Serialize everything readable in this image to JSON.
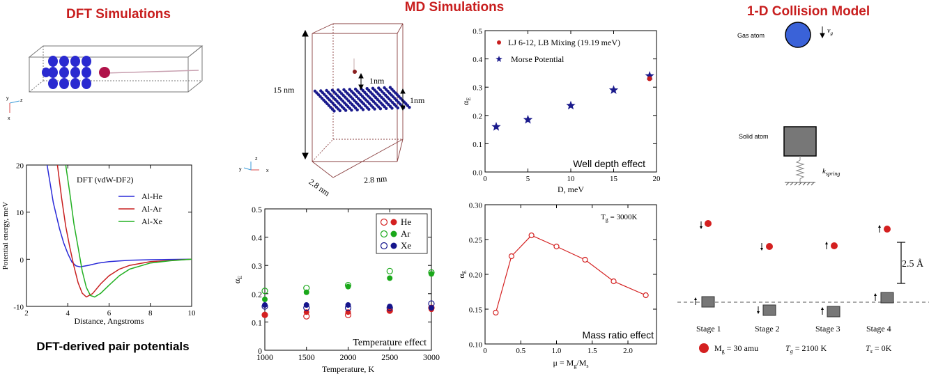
{
  "sections": {
    "dft_title": "DFT Simulations",
    "md_title": "MD Simulations",
    "collision_title": "1-D Collision Model",
    "dft_caption": "DFT-derived pair potentials"
  },
  "md_box": {
    "height_label": "15 nm",
    "gap_label": "1nm",
    "layer_label": "1nm",
    "width_label_1": "2.8 nm",
    "width_label_2": "2.8 nm"
  },
  "collision": {
    "gas_atom_label": "Gas atom",
    "vg_label": "v",
    "vg_sub": "g",
    "solid_atom_label": "Solid atom",
    "spring_label": "k",
    "spring_sub": "spring",
    "distance_label": "2.5 Å",
    "stages": [
      "Stage 1",
      "Stage 2",
      "Stage 3",
      "Stage 4"
    ],
    "mg_label": "M",
    "mg_sub": "g",
    "mg_value": " = 30 amu",
    "tg_label": "T",
    "tg_sub": "g",
    "tg_value": " = 2100 K",
    "ts_label": "T",
    "ts_sub": "s",
    "ts_value": " = 0K",
    "colors": {
      "atom": "#d42020",
      "solid": "#777777",
      "gas": "#3a62d8"
    }
  },
  "chart_data": [
    {
      "id": "dft_potential",
      "type": "line",
      "title": "DFT (vdW-DF2)",
      "xlabel": "Distance, Angstroms",
      "ylabel": "Potential energy, meV",
      "xlim": [
        2,
        10
      ],
      "ylim": [
        -10,
        20
      ],
      "xticks": [
        2,
        4,
        6,
        8,
        10
      ],
      "yticks": [
        -10,
        0,
        10,
        20
      ],
      "legend_position": "top-right",
      "series": [
        {
          "name": "Al-He",
          "color": "#2a2ad8",
          "x": [
            3.0,
            3.3,
            3.6,
            3.8,
            4.0,
            4.2,
            4.4,
            4.6,
            5.0,
            5.5,
            6.0,
            7.0,
            8.0,
            10.0
          ],
          "y": [
            20,
            12,
            6.5,
            3.5,
            1.2,
            -0.6,
            -1.4,
            -1.6,
            -1.3,
            -0.8,
            -0.5,
            -0.2,
            -0.1,
            0
          ]
        },
        {
          "name": "Al-Ar",
          "color": "#c81e1e",
          "x": [
            3.5,
            3.7,
            3.9,
            4.1,
            4.3,
            4.5,
            4.7,
            4.9,
            5.2,
            5.6,
            6.0,
            6.5,
            7.0,
            8.0,
            10.0
          ],
          "y": [
            20,
            13,
            7,
            2.5,
            -1.5,
            -5,
            -7.2,
            -8,
            -7.3,
            -5.2,
            -3.5,
            -2.1,
            -1.3,
            -0.5,
            0
          ]
        },
        {
          "name": "Al-Xe",
          "color": "#22b022",
          "x": [
            3.9,
            4.1,
            4.3,
            4.5,
            4.7,
            4.9,
            5.1,
            5.3,
            5.6,
            6.0,
            6.5,
            7.0,
            8.0,
            9.0,
            10.0
          ],
          "y": [
            20,
            14,
            7.5,
            2.5,
            -2.5,
            -6,
            -7.7,
            -8,
            -7.2,
            -5.5,
            -3.5,
            -2.1,
            -0.8,
            -0.3,
            0
          ]
        }
      ]
    },
    {
      "id": "well_depth",
      "type": "scatter",
      "annotation": "Well depth effect",
      "xlabel": "D, meV",
      "ylabel": "α",
      "ylabel_sub": "E",
      "xlim": [
        0,
        20
      ],
      "ylim": [
        0,
        0.5
      ],
      "xticks": [
        0,
        5,
        10,
        15,
        20
      ],
      "yticks": [
        0,
        0.1,
        0.2,
        0.3,
        0.4,
        0.5
      ],
      "legend_position": "top-right",
      "series": [
        {
          "name": "LJ 6-12, LB Mixing (19.19 meV)",
          "marker": "circle",
          "color": "#c81e1e",
          "x": [
            19.19
          ],
          "y": [
            0.33
          ]
        },
        {
          "name": "Morse Potential",
          "marker": "star",
          "color": "#1a1a8c",
          "x": [
            1.3,
            5,
            10,
            15,
            19.2
          ],
          "y": [
            0.16,
            0.185,
            0.235,
            0.29,
            0.34
          ]
        }
      ]
    },
    {
      "id": "temperature",
      "type": "scatter",
      "annotation": "Temperature effect",
      "xlabel": "Temperature, K",
      "ylabel": "α",
      "ylabel_sub": "E",
      "xlim": [
        1000,
        3000
      ],
      "ylim": [
        0,
        0.5
      ],
      "xticks": [
        1000,
        1500,
        2000,
        2500,
        3000
      ],
      "yticks": [
        0,
        0.1,
        0.2,
        0.3,
        0.4,
        0.5
      ],
      "legend_position": "top-right",
      "series": [
        {
          "name": "He",
          "color": "#d42020",
          "open": [
            0.125,
            0.12,
            0.125,
            0.14,
            0.15
          ],
          "filled": [
            0.125,
            0.135,
            0.135,
            0.14,
            0.145
          ]
        },
        {
          "name": "Ar",
          "color": "#1aa81a",
          "open": [
            0.21,
            0.22,
            0.23,
            0.28,
            0.275
          ],
          "filled": [
            0.18,
            0.205,
            0.225,
            0.255,
            0.27
          ]
        },
        {
          "name": "Xe",
          "color": "#15158c",
          "open": [
            0.155,
            0.15,
            0.15,
            0.15,
            0.165
          ],
          "filled": [
            0.16,
            0.16,
            0.16,
            0.155,
            0.15
          ]
        }
      ],
      "x": [
        1000,
        1500,
        2000,
        2500,
        3000
      ]
    },
    {
      "id": "mass_ratio",
      "type": "line",
      "annotation": "Mass ratio effect",
      "tg_note": "T",
      "tg_note_sub": "g",
      "tg_note_value": " = 3000K",
      "xlabel": "μ = M",
      "xlabel_sub1": "g",
      "xlabel_mid": "/M",
      "xlabel_sub2": "s",
      "ylabel": "α",
      "ylabel_sub": "E",
      "xlim": [
        0,
        2.4
      ],
      "ylim": [
        0.1,
        0.3
      ],
      "xticks": [
        0,
        0.5,
        1.0,
        1.5,
        2.0
      ],
      "yticks": [
        0.1,
        0.15,
        0.2,
        0.25,
        0.3
      ],
      "series": [
        {
          "name": "",
          "color": "#d42020",
          "x": [
            0.15,
            0.37,
            0.65,
            1.0,
            1.4,
            1.8,
            2.25
          ],
          "y": [
            0.145,
            0.226,
            0.256,
            0.24,
            0.221,
            0.19,
            0.17
          ]
        }
      ]
    }
  ]
}
